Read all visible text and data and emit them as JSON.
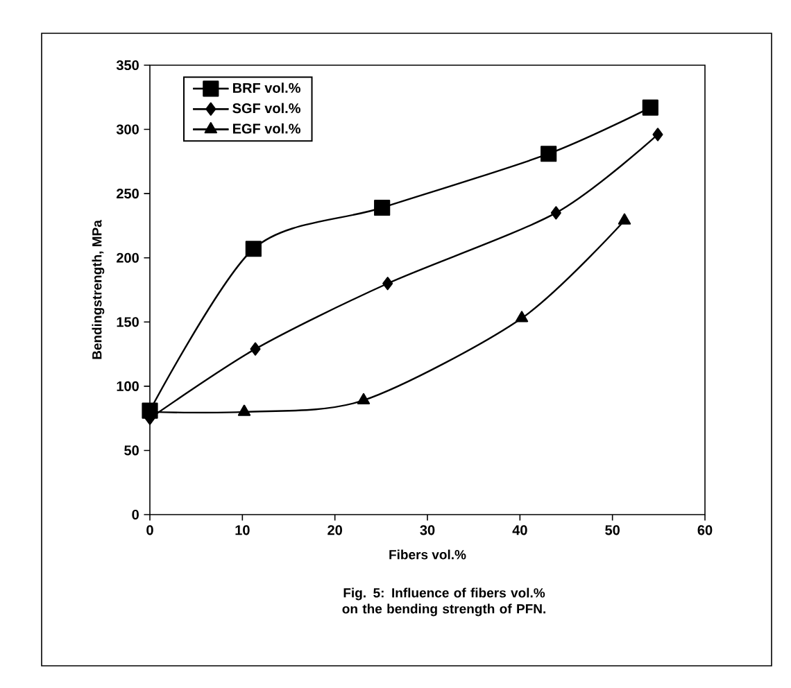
{
  "chart_data": {
    "type": "line",
    "xlabel": "Fibers vol.%",
    "ylabel": "Bendingstrength, MPa",
    "annotations": [
      "Fig. 5: Influence of fibers vol.% on the bending strength of PFN."
    ],
    "xlim": [
      0,
      60
    ],
    "xticks": [
      0,
      10,
      20,
      30,
      40,
      50,
      60
    ],
    "ylim": [
      0,
      350
    ],
    "yticks": [
      0,
      50,
      100,
      150,
      200,
      250,
      300,
      350
    ],
    "grid": false,
    "legend": "top left",
    "line_style": "solid",
    "series": [
      {
        "name": "BRF vol.%",
        "color": "#000000",
        "marker": "square",
        "x": [
          0,
          11.2,
          25.1,
          43.1,
          54.1
        ],
        "values": [
          81,
          207,
          239,
          281,
          317
        ]
      },
      {
        "name": "SGF vol.%",
        "color": "#000000",
        "marker": "diamond",
        "x": [
          0,
          11.4,
          25.7,
          43.9,
          54.9
        ],
        "values": [
          75,
          129,
          180,
          235,
          296
        ]
      },
      {
        "name": "EGF vol.%",
        "color": "#000000",
        "marker": "triangle",
        "x": [
          0,
          10.2,
          23.1,
          40.2,
          51.3
        ],
        "values": [
          80,
          80,
          89,
          153,
          229
        ]
      }
    ]
  }
}
